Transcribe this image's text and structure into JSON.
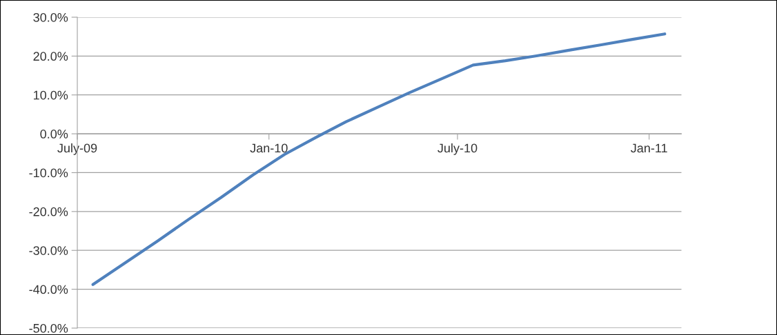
{
  "chart_data": {
    "type": "line",
    "x": [
      "2009-07-16",
      "2009-08-16",
      "2009-09-16",
      "2009-10-16",
      "2009-11-16",
      "2009-12-16",
      "2010-01-16",
      "2010-02-16",
      "2010-03-16",
      "2010-04-16",
      "2010-05-16",
      "2010-06-16",
      "2010-07-16",
      "2010-08-16",
      "2010-09-16",
      "2010-10-16",
      "2010-11-16",
      "2010-12-16",
      "2011-01-16"
    ],
    "series": [
      {
        "color": "#4f81bd",
        "values": [
          -38.8,
          -33.2,
          -27.6,
          -22.0,
          -16.4,
          -10.7,
          -5.3,
          -0.8,
          3.1,
          6.9,
          10.6,
          14.2,
          17.7,
          18.8,
          20.1,
          21.5,
          22.9,
          24.3,
          25.7
        ]
      }
    ],
    "xlim": [
      "2009-07-01",
      "2011-02-01"
    ],
    "xticks": [
      {
        "value": "2009-07-01",
        "label": "July-09"
      },
      {
        "value": "2010-01-01",
        "label": "Jan-10"
      },
      {
        "value": "2010-07-01",
        "label": "July-10"
      },
      {
        "value": "2011-01-01",
        "label": "Jan-11"
      }
    ],
    "ylim": [
      -50,
      30
    ],
    "yticks": [
      {
        "value": -50,
        "label": "-50.0%"
      },
      {
        "value": -40,
        "label": "-40.0%"
      },
      {
        "value": -30,
        "label": "-30.0%"
      },
      {
        "value": -20,
        "label": "-20.0%"
      },
      {
        "value": -10,
        "label": "-10.0%"
      },
      {
        "value": 0,
        "label": "0.0%"
      },
      {
        "value": 10,
        "label": "10.0%"
      },
      {
        "value": 20,
        "label": "20.0%"
      },
      {
        "value": 30,
        "label": "30.0%"
      }
    ],
    "grid": "y",
    "marker": "none",
    "line_style": "solid"
  }
}
